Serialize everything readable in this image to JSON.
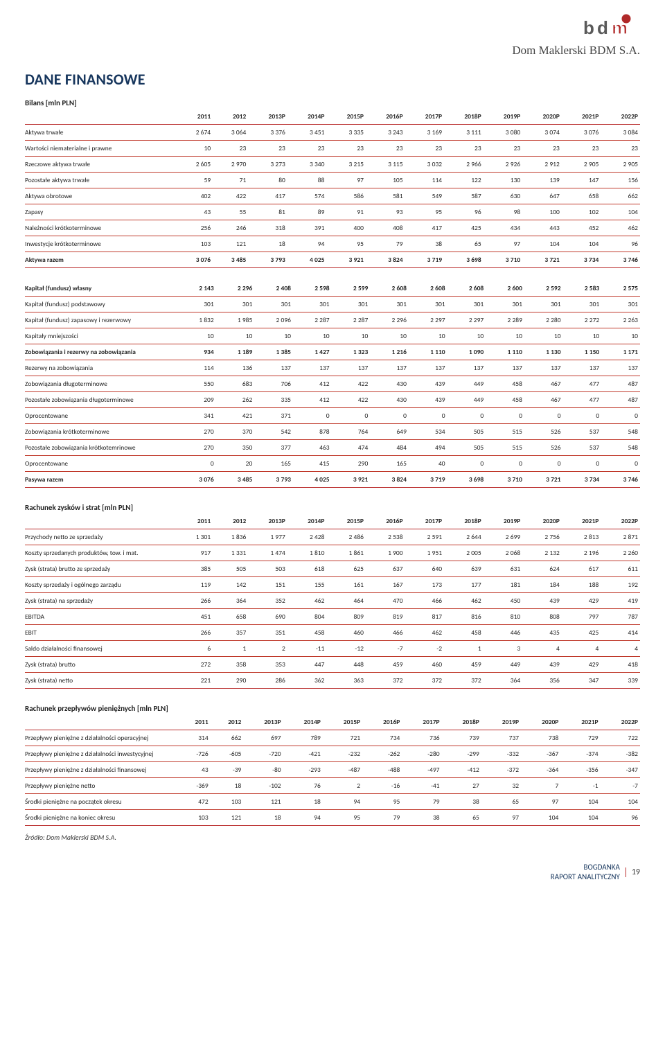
{
  "header": {
    "company_name": "Dom Maklerski BDM S.A.",
    "logo": {
      "b_color": "#5a5a5a",
      "d_color": "#5a5a5a",
      "m_color": "#b02a2a",
      "dot_color": "#b02a2a"
    }
  },
  "title": "DANE FINANSOWE",
  "years": [
    "2011",
    "2012",
    "2013P",
    "2014P",
    "2015P",
    "2016P",
    "2017P",
    "2018P",
    "2019P",
    "2020P",
    "2021P",
    "2022P"
  ],
  "colors": {
    "title_color": "#17365d",
    "rule": "#b92a2a",
    "text": "#222222",
    "bg": "#ffffff"
  },
  "bilans": {
    "title": "Bilans [mln PLN]",
    "rows": [
      {
        "label": "Aktywa trwałe",
        "v": [
          "2 674",
          "3 064",
          "3 376",
          "3 451",
          "3 335",
          "3 243",
          "3 169",
          "3 111",
          "3 080",
          "3 074",
          "3 076",
          "3 084"
        ]
      },
      {
        "label": "Wartości niematerialne i prawne",
        "v": [
          "10",
          "23",
          "23",
          "23",
          "23",
          "23",
          "23",
          "23",
          "23",
          "23",
          "23",
          "23"
        ]
      },
      {
        "label": "Rzeczowe aktywa trwałe",
        "v": [
          "2 605",
          "2 970",
          "3 273",
          "3 340",
          "3 215",
          "3 115",
          "3 032",
          "2 966",
          "2 926",
          "2 912",
          "2 905",
          "2 905"
        ]
      },
      {
        "label": "Pozostałe aktywa trwałe",
        "v": [
          "59",
          "71",
          "80",
          "88",
          "97",
          "105",
          "114",
          "122",
          "130",
          "139",
          "147",
          "156"
        ]
      },
      {
        "label": "Aktywa obrotowe",
        "v": [
          "402",
          "422",
          "417",
          "574",
          "586",
          "581",
          "549",
          "587",
          "630",
          "647",
          "658",
          "662"
        ]
      },
      {
        "label": "Zapasy",
        "v": [
          "43",
          "55",
          "81",
          "89",
          "91",
          "93",
          "95",
          "96",
          "98",
          "100",
          "102",
          "104"
        ]
      },
      {
        "label": "Należności krótkoterminowe",
        "v": [
          "256",
          "246",
          "318",
          "391",
          "400",
          "408",
          "417",
          "425",
          "434",
          "443",
          "452",
          "462"
        ]
      },
      {
        "label": "Inwestycje krótkoterminowe",
        "v": [
          "103",
          "121",
          "18",
          "94",
          "95",
          "79",
          "38",
          "65",
          "97",
          "104",
          "104",
          "96"
        ]
      },
      {
        "label": "Aktywa razem",
        "v": [
          "3 076",
          "3 485",
          "3 793",
          "4 025",
          "3 921",
          "3 824",
          "3 719",
          "3 698",
          "3 710",
          "3 721",
          "3 734",
          "3 746"
        ],
        "bold": true,
        "rule_after": true
      }
    ],
    "rows2": [
      {
        "label": "Kapitał (fundusz) własny",
        "v": [
          "2 143",
          "2 296",
          "2 408",
          "2 598",
          "2 599",
          "2 608",
          "2 608",
          "2 608",
          "2 600",
          "2 592",
          "2 583",
          "2 575"
        ],
        "bold": true
      },
      {
        "label": "Kapitał (fundusz) podstawowy",
        "v": [
          "301",
          "301",
          "301",
          "301",
          "301",
          "301",
          "301",
          "301",
          "301",
          "301",
          "301",
          "301"
        ]
      },
      {
        "label": "Kapitał (fundusz) zapasowy i rezerwowy",
        "v": [
          "1 832",
          "1 985",
          "2 096",
          "2 287",
          "2 287",
          "2 296",
          "2 297",
          "2 297",
          "2 289",
          "2 280",
          "2 272",
          "2 263"
        ]
      },
      {
        "label": "Kapitały mniejszości",
        "v": [
          "10",
          "10",
          "10",
          "10",
          "10",
          "10",
          "10",
          "10",
          "10",
          "10",
          "10",
          "10"
        ]
      },
      {
        "label": "Zobowiązania i rezerwy na zobowiązania",
        "v": [
          "934",
          "1 189",
          "1 385",
          "1 427",
          "1 323",
          "1 216",
          "1 110",
          "1 090",
          "1 110",
          "1 130",
          "1 150",
          "1 171"
        ],
        "bold": true
      },
      {
        "label": "Rezerwy na zobowiązania",
        "v": [
          "114",
          "136",
          "137",
          "137",
          "137",
          "137",
          "137",
          "137",
          "137",
          "137",
          "137",
          "137"
        ]
      },
      {
        "label": "Zobowiązania długoterminowe",
        "v": [
          "550",
          "683",
          "706",
          "412",
          "422",
          "430",
          "439",
          "449",
          "458",
          "467",
          "477",
          "487"
        ]
      },
      {
        "label": "Pozostałe zobowiązania długoterminowe",
        "v": [
          "209",
          "262",
          "335",
          "412",
          "422",
          "430",
          "439",
          "449",
          "458",
          "467",
          "477",
          "487"
        ],
        "indent": true
      },
      {
        "label": "Oprocentowane",
        "v": [
          "341",
          "421",
          "371",
          "0",
          "0",
          "0",
          "0",
          "0",
          "0",
          "0",
          "0",
          "0"
        ],
        "indent": true
      },
      {
        "label": "Zobowiązania krótkoterminowe",
        "v": [
          "270",
          "370",
          "542",
          "878",
          "764",
          "649",
          "534",
          "505",
          "515",
          "526",
          "537",
          "548"
        ]
      },
      {
        "label": "Pozostałe zobowiązania krótkotemrinowe",
        "v": [
          "270",
          "350",
          "377",
          "463",
          "474",
          "484",
          "494",
          "505",
          "515",
          "526",
          "537",
          "548"
        ],
        "indent": true
      },
      {
        "label": "Oprocentowane",
        "v": [
          "0",
          "20",
          "165",
          "415",
          "290",
          "165",
          "40",
          "0",
          "0",
          "0",
          "0",
          "0"
        ],
        "indent": true
      },
      {
        "label": "Pasywa razem",
        "v": [
          "3 076",
          "3 485",
          "3 793",
          "4 025",
          "3 921",
          "3 824",
          "3 719",
          "3 698",
          "3 710",
          "3 721",
          "3 734",
          "3 746"
        ],
        "bold": true,
        "rule_after": true
      }
    ]
  },
  "rzis": {
    "title": "Rachunek zysków i strat [mln PLN]",
    "rows": [
      {
        "label": "Przychody netto ze sprzedaży",
        "v": [
          "1 301",
          "1 836",
          "1 977",
          "2 428",
          "2 486",
          "2 538",
          "2 591",
          "2 644",
          "2 699",
          "2 756",
          "2 813",
          "2 871"
        ]
      },
      {
        "label": "Koszty sprzedanych produktów, tow. i mat.",
        "v": [
          "917",
          "1 331",
          "1 474",
          "1 810",
          "1 861",
          "1 900",
          "1 951",
          "2 005",
          "2 068",
          "2 132",
          "2 196",
          "2 260"
        ]
      },
      {
        "label": "Zysk (strata) brutto ze sprzedaży",
        "v": [
          "385",
          "505",
          "503",
          "618",
          "625",
          "637",
          "640",
          "639",
          "631",
          "624",
          "617",
          "611"
        ]
      },
      {
        "label": "Koszty sprzedaży i ogólnego zarządu",
        "v": [
          "119",
          "142",
          "151",
          "155",
          "161",
          "167",
          "173",
          "177",
          "181",
          "184",
          "188",
          "192"
        ]
      },
      {
        "label": "Zysk (strata) na sprzedaży",
        "v": [
          "266",
          "364",
          "352",
          "462",
          "464",
          "470",
          "466",
          "462",
          "450",
          "439",
          "429",
          "419"
        ]
      },
      {
        "label": "EBITDA",
        "v": [
          "451",
          "658",
          "690",
          "804",
          "809",
          "819",
          "817",
          "816",
          "810",
          "808",
          "797",
          "787"
        ]
      },
      {
        "label": "EBIT",
        "v": [
          "266",
          "357",
          "351",
          "458",
          "460",
          "466",
          "462",
          "458",
          "446",
          "435",
          "425",
          "414"
        ]
      },
      {
        "label": "Saldo działalności finansowej",
        "v": [
          "6",
          "1",
          "2",
          "-11",
          "-12",
          "-7",
          "-2",
          "1",
          "3",
          "4",
          "4",
          "4"
        ]
      },
      {
        "label": "Zysk (strata) brutto",
        "v": [
          "272",
          "358",
          "353",
          "447",
          "448",
          "459",
          "460",
          "459",
          "449",
          "439",
          "429",
          "418"
        ]
      },
      {
        "label": "Zysk (strata) netto",
        "v": [
          "221",
          "290",
          "286",
          "362",
          "363",
          "372",
          "372",
          "372",
          "364",
          "356",
          "347",
          "339"
        ],
        "rule_after": true
      }
    ]
  },
  "cashflow": {
    "title": "Rachunek przepływów pieniężnych [mln PLN]",
    "rows": [
      {
        "label": "Przepływy pieniężne z działalności operacyjnej",
        "v": [
          "314",
          "662",
          "697",
          "789",
          "721",
          "734",
          "736",
          "739",
          "737",
          "738",
          "729",
          "722"
        ]
      },
      {
        "label": "Przepływy pieniężne z działalności inwestycyjnej",
        "v": [
          "-726",
          "-605",
          "-720",
          "-421",
          "-232",
          "-262",
          "-280",
          "-299",
          "-332",
          "-367",
          "-374",
          "-382"
        ]
      },
      {
        "label": "Przepływy pieniężne z działalności finansowej",
        "v": [
          "43",
          "-39",
          "-80",
          "-293",
          "-487",
          "-488",
          "-497",
          "-412",
          "-372",
          "-364",
          "-356",
          "-347"
        ]
      },
      {
        "label": "Przepływy pieniężne netto",
        "v": [
          "-369",
          "18",
          "-102",
          "76",
          "2",
          "-16",
          "-41",
          "27",
          "32",
          "7",
          "-1",
          "-7"
        ]
      },
      {
        "label": "Środki pieniężne na początek okresu",
        "v": [
          "472",
          "103",
          "121",
          "18",
          "94",
          "95",
          "79",
          "38",
          "65",
          "97",
          "104",
          "104"
        ]
      },
      {
        "label": "Środki pieniężne na koniec okresu",
        "v": [
          "103",
          "121",
          "18",
          "94",
          "95",
          "79",
          "38",
          "65",
          "97",
          "104",
          "104",
          "96"
        ],
        "rule_after": true
      }
    ]
  },
  "source": "Źródło: Dom Maklerski BDM S.A.",
  "footer": {
    "line1": "BOGDANKA",
    "line2": "RAPORT ANALITYCZNY",
    "page": "19"
  }
}
